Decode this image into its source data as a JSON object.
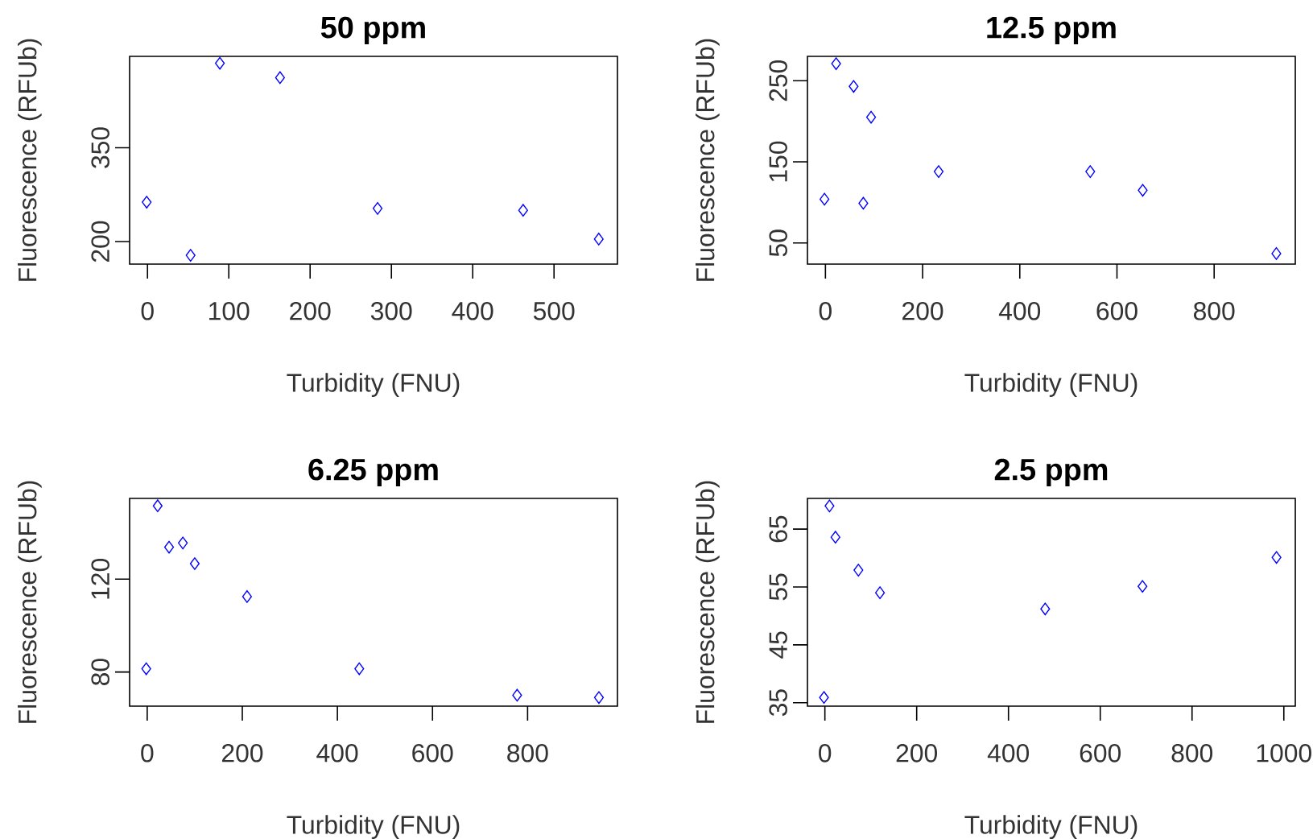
{
  "chart_data": [
    {
      "type": "scatter",
      "title": "50 ppm",
      "xlabel": "Turbidity (FNU)",
      "ylabel": "Fluorescence (RFUb)",
      "color": "#0000ff",
      "marker": "diamond",
      "x": [
        -1,
        53,
        89,
        163,
        283,
        462,
        555
      ],
      "values": [
        263,
        178,
        485,
        462,
        253,
        250,
        204
      ],
      "xlim": [
        -22,
        578
      ],
      "ylim": [
        164,
        496
      ],
      "xticks": [
        0,
        100,
        200,
        300,
        400,
        500
      ],
      "yticks": [
        200,
        350
      ]
    },
    {
      "type": "scatter",
      "title": "12.5 ppm",
      "xlabel": "Turbidity (FNU)",
      "ylabel": "Fluorescence (RFUb)",
      "color": "#0000ff",
      "marker": "diamond",
      "x": [
        -2,
        22,
        58,
        94,
        78,
        233,
        545,
        653,
        928
      ],
      "values": [
        104,
        271,
        243,
        205,
        99,
        138,
        138,
        115,
        37
      ],
      "xlim": [
        -37,
        967
      ],
      "ylim": [
        24,
        280
      ],
      "xticks": [
        0,
        200,
        400,
        600,
        800
      ],
      "yticks": [
        50,
        150,
        250
      ]
    },
    {
      "type": "scatter",
      "title": "6.25 ppm",
      "xlabel": "Turbidity (FNU)",
      "ylabel": "Fluorescence (RFUb)",
      "color": "#0000ff",
      "marker": "diamond",
      "x": [
        -2,
        22,
        46,
        75,
        100,
        210,
        446,
        778,
        950
      ],
      "values": [
        81.4,
        151.6,
        133.8,
        135.6,
        126.7,
        112.5,
        81.4,
        70,
        69
      ],
      "xlim": [
        -37,
        989
      ],
      "ylim": [
        65.3,
        154.8
      ],
      "xticks": [
        0,
        200,
        400,
        600,
        800
      ],
      "yticks": [
        80,
        120
      ]
    },
    {
      "type": "scatter",
      "title": "2.5 ppm",
      "xlabel": "Turbidity (FNU)",
      "ylabel": "Fluorescence (RFUb)",
      "color": "#0000ff",
      "marker": "diamond",
      "x": [
        -2,
        10,
        23,
        73,
        120,
        480,
        692,
        984
      ],
      "values": [
        35.9,
        69,
        63.6,
        57.9,
        54,
        51.2,
        55.1,
        60.1
      ],
      "xlim": [
        -38,
        1025
      ],
      "ylim": [
        34.4,
        70.3
      ],
      "xticks": [
        0,
        200,
        400,
        600,
        800,
        1000
      ],
      "yticks": [
        35,
        45,
        55,
        65
      ]
    }
  ]
}
